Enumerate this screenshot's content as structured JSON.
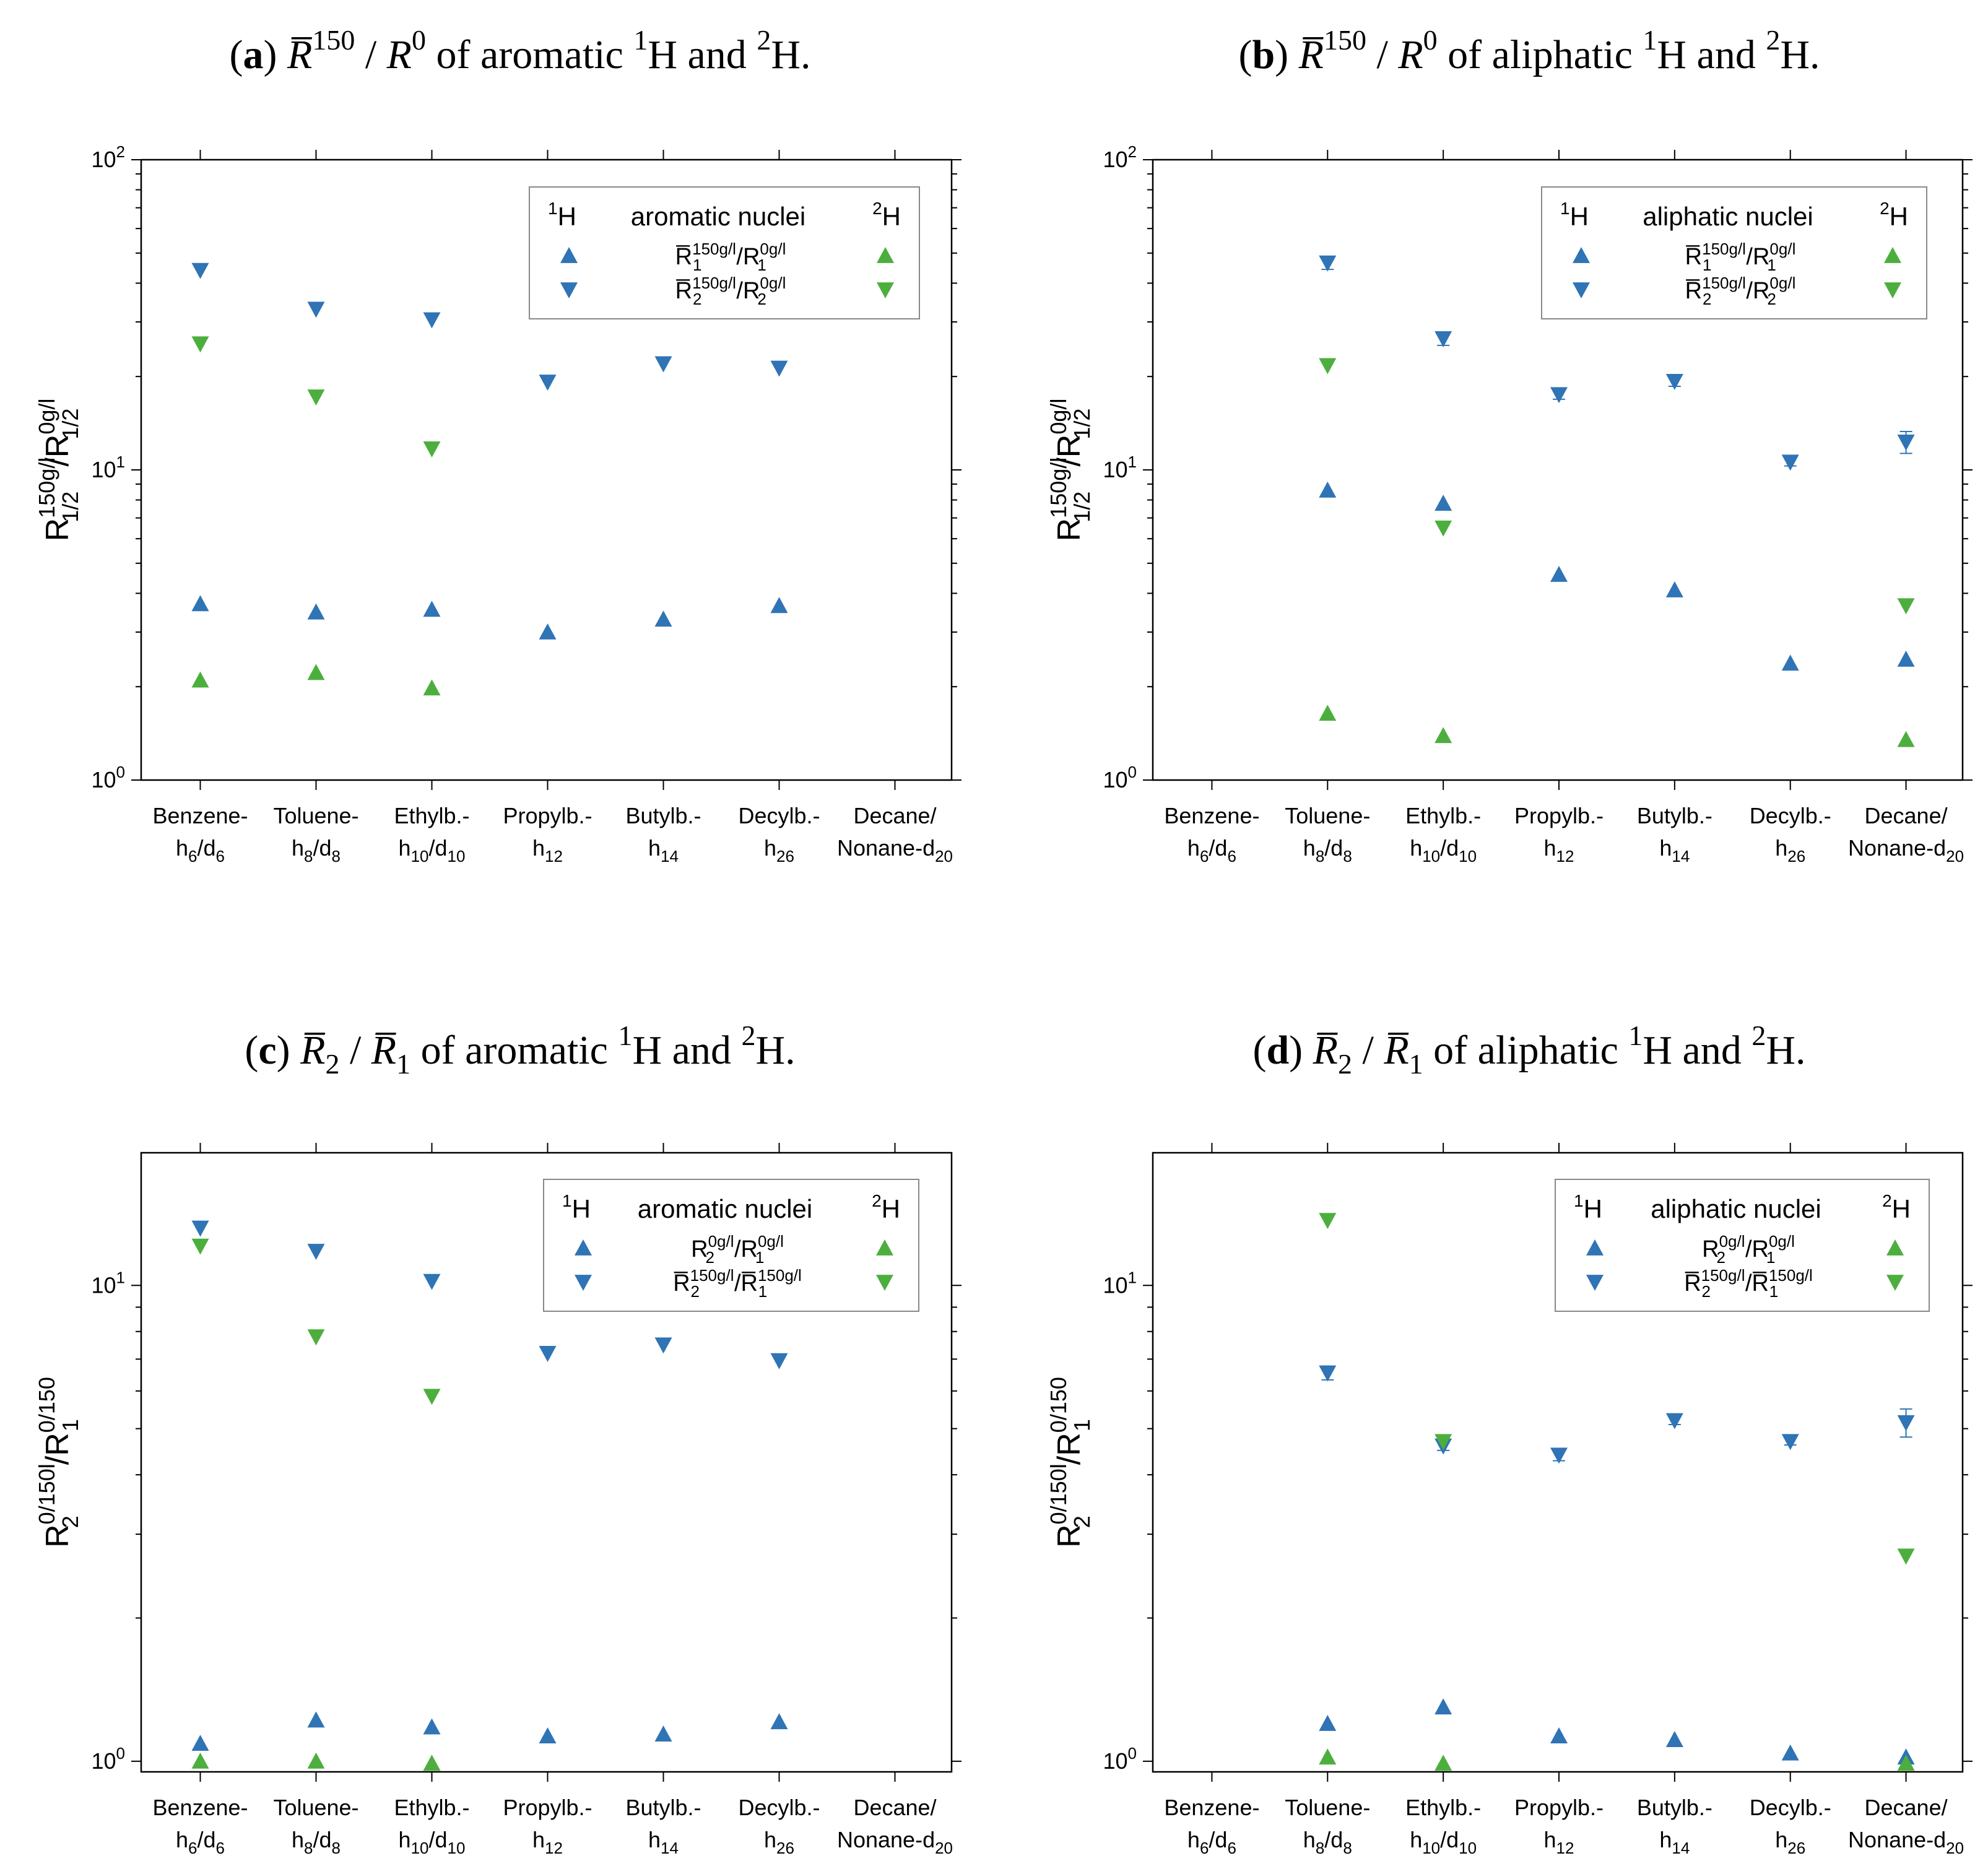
{
  "colors": {
    "blue": "#2f74b5",
    "green": "#4caf3d",
    "axis": "#000000",
    "legend_border": "#888888"
  },
  "categories": [
    [
      "Benzene-",
      "h6/d6"
    ],
    [
      "Toluene-",
      "h8/d8"
    ],
    [
      "Ethylb.-",
      "h10/d10"
    ],
    [
      "Propylb.-",
      "h12"
    ],
    [
      "Butylb.-",
      "h14"
    ],
    [
      "Decylb.-",
      "h26"
    ],
    [
      "Decane/",
      "Nonane-d20"
    ]
  ],
  "chart_data": [
    {
      "id": "a",
      "type": "scatter",
      "title": {
        "letter": "(a)",
        "quantity": "R̄150/R0",
        "text": "of aromatic 1H and 2H."
      },
      "ylabel": "R1/2 150g/l / R1/2 0g/l",
      "yscale": "log",
      "ylim": [
        1,
        100
      ],
      "yticks": [
        1,
        10,
        100
      ],
      "ytick_labels": [
        "10^0",
        "10^1",
        "10^2"
      ],
      "legend": {
        "left_header": "1H",
        "center_header": "aromatic nuclei",
        "right_header": "2H",
        "entries": [
          "R̄1 150g/l / R1 0g/l",
          "R̄2 150g/l / R2 0g/l"
        ]
      },
      "series": [
        {
          "name": "1H R1",
          "color": "blue",
          "marker": "up",
          "values": [
            3.7,
            3.48,
            3.55,
            3.0,
            3.3,
            3.65,
            null
          ]
        },
        {
          "name": "1H R2",
          "color": "blue",
          "marker": "down",
          "values": [
            44,
            33,
            30.5,
            19.2,
            22,
            21.3,
            null
          ]
        },
        {
          "name": "2H R1",
          "color": "green",
          "marker": "up",
          "values": [
            2.1,
            2.22,
            1.98,
            null,
            null,
            null,
            null
          ]
        },
        {
          "name": "2H R2",
          "color": "green",
          "marker": "down",
          "values": [
            25.5,
            17.2,
            11.7,
            null,
            null,
            null,
            null
          ]
        }
      ]
    },
    {
      "id": "b",
      "type": "scatter",
      "title": {
        "letter": "(b)",
        "quantity": "R̄150/R0",
        "text": "of aliphatic 1H and 2H."
      },
      "ylabel": "R1/2 150g/l / R1/2 0g/l",
      "yscale": "log",
      "ylim": [
        1,
        100
      ],
      "yticks": [
        1,
        10,
        100
      ],
      "ytick_labels": [
        "10^0",
        "10^1",
        "10^2"
      ],
      "legend": {
        "left_header": "1H",
        "center_header": "aliphatic nuclei",
        "right_header": "2H",
        "entries": [
          "R̄1 150g/l / R1 0g/l",
          "R̄2 150g/l / R2 0g/l"
        ]
      },
      "series": [
        {
          "name": "1H R1",
          "color": "blue",
          "marker": "up",
          "values": [
            null,
            8.6,
            7.8,
            4.6,
            4.1,
            2.38,
            2.45
          ]
        },
        {
          "name": "1H R2",
          "color": "blue",
          "marker": "down",
          "values": [
            null,
            46.5,
            26.5,
            17.5,
            19.3,
            10.6,
            12.3
          ],
          "errors": [
            null,
            2.2,
            1.3,
            0.6,
            0.7,
            0.3,
            1.0
          ]
        },
        {
          "name": "2H R1",
          "color": "green",
          "marker": "up",
          "values": [
            null,
            1.64,
            1.39,
            null,
            null,
            null,
            1.35
          ]
        },
        {
          "name": "2H R2",
          "color": "green",
          "marker": "down",
          "values": [
            null,
            21.7,
            6.5,
            null,
            null,
            null,
            3.65
          ]
        }
      ]
    },
    {
      "id": "c",
      "type": "scatter",
      "title": {
        "letter": "(c)",
        "quantity": "R̄2/R̄1",
        "text": "of aromatic 1H and 2H."
      },
      "ylabel": "R2 0/150l / R1 0/150",
      "yscale": "log",
      "ylim": [
        0.95,
        19
      ],
      "yticks": [
        1,
        10
      ],
      "ytick_labels": [
        "10^0",
        "10^1"
      ],
      "legend": {
        "left_header": "1H",
        "center_header": "aromatic nuclei",
        "right_header": "2H",
        "entries": [
          "R2 0g/l / R1 0g/l",
          "R̄2 150g/l / R̄1 150g/l"
        ]
      },
      "series": [
        {
          "name": "1H R0",
          "color": "blue",
          "marker": "up",
          "values": [
            1.09,
            1.22,
            1.18,
            1.13,
            1.14,
            1.21,
            null
          ]
        },
        {
          "name": "1H R150",
          "color": "blue",
          "marker": "down",
          "values": [
            13.2,
            11.8,
            10.2,
            7.2,
            7.5,
            6.95,
            null
          ]
        },
        {
          "name": "2H R0",
          "color": "green",
          "marker": "up",
          "values": [
            1.0,
            1.0,
            0.99,
            null,
            null,
            null,
            null
          ]
        },
        {
          "name": "2H R150",
          "color": "green",
          "marker": "down",
          "values": [
            12.1,
            7.8,
            5.85,
            null,
            null,
            null,
            null
          ]
        }
      ]
    },
    {
      "id": "d",
      "type": "scatter",
      "title": {
        "letter": "(d)",
        "quantity": "R̄2/R̄1",
        "text": "of aliphatic 1H and 2H."
      },
      "ylabel": "R2 0/150l / R1 0/150",
      "yscale": "log",
      "ylim": [
        0.95,
        19
      ],
      "yticks": [
        1,
        10
      ],
      "ytick_labels": [
        "10^0",
        "10^1"
      ],
      "legend": {
        "left_header": "1H",
        "center_header": "aliphatic nuclei",
        "right_header": "2H",
        "entries": [
          "R2 0g/l / R1 0g/l",
          "R̄2 150g/l / R̄1 150g/l"
        ]
      },
      "series": [
        {
          "name": "1H R0",
          "color": "blue",
          "marker": "up",
          "values": [
            null,
            1.2,
            1.3,
            1.13,
            1.11,
            1.04,
            1.02
          ]
        },
        {
          "name": "1H R150",
          "color": "blue",
          "marker": "down",
          "values": [
            null,
            6.55,
            4.6,
            4.4,
            5.2,
            4.7,
            5.15
          ],
          "errors": [
            null,
            0.22,
            0.1,
            0.12,
            0.1,
            0.08,
            0.35
          ]
        },
        {
          "name": "2H R0",
          "color": "green",
          "marker": "up",
          "values": [
            null,
            1.02,
            0.99,
            null,
            null,
            null,
            0.99
          ]
        },
        {
          "name": "2H R150",
          "color": "green",
          "marker": "down",
          "values": [
            null,
            13.7,
            4.7,
            null,
            null,
            null,
            2.7
          ]
        }
      ]
    }
  ]
}
